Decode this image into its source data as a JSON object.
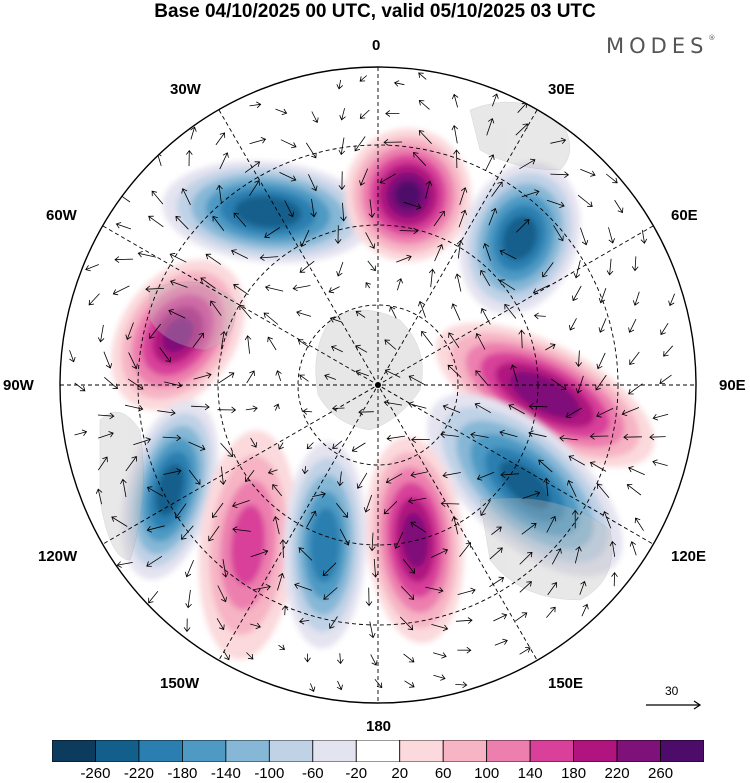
{
  "title": "Base 04/10/2025 00 UTC, valid 05/10/2025 03 UTC",
  "brand": "MODES",
  "brand_mark": "®",
  "longitude_labels": {
    "top": "0",
    "top_left": "30W",
    "top_right": "30E",
    "left_upper": "60W",
    "right_upper": "60E",
    "left": "90W",
    "right": "90E",
    "left_lower": "120W",
    "right_lower": "120E",
    "bottom_left": "150W",
    "bottom_right": "150E",
    "bottom": "180"
  },
  "reference_vector": {
    "label": "30"
  },
  "colorbar": {
    "labels": [
      "-260",
      "-220",
      "-180",
      "-140",
      "-100",
      "-60",
      "-20",
      "20",
      "60",
      "100",
      "140",
      "180",
      "220",
      "260"
    ],
    "colors": [
      "#0d3b5e",
      "#125f8c",
      "#2b7fb0",
      "#4e9ac4",
      "#86b7d6",
      "#bfd2e6",
      "#e4e3f0",
      "#ffffff",
      "#fbd9dc",
      "#f6b4c4",
      "#ec7fae",
      "#d8409a",
      "#b0157f",
      "#7f117a",
      "#4d0c69"
    ]
  },
  "anomalies": [
    {
      "name": "neg-30w",
      "v": -250
    },
    {
      "name": "pos-0",
      "v": 260
    },
    {
      "name": "neg-45e",
      "v": -240
    },
    {
      "name": "pos-80w",
      "v": 220
    },
    {
      "name": "pos-100e",
      "v": 250
    },
    {
      "name": "neg-120e",
      "v": -230
    },
    {
      "name": "neg-115w",
      "v": -240
    },
    {
      "name": "pos-140w",
      "v": 150
    },
    {
      "name": "neg-160w",
      "v": -210
    },
    {
      "name": "pos-175e",
      "v": 230
    }
  ]
}
